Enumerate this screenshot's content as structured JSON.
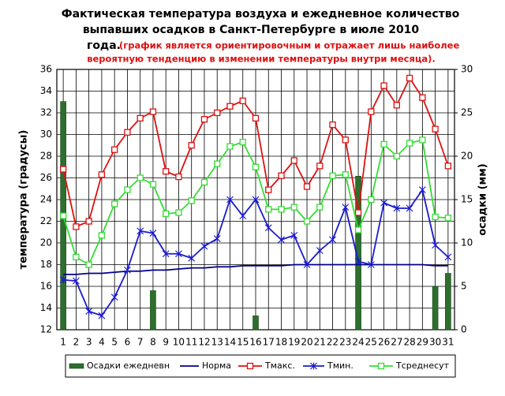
{
  "chart_data": {
    "type": "combo",
    "title_lines": [
      "Фактическая температура воздуха и ежедневное количество",
      "выпавших осадков в Санкт-Петербурге в июле 2010",
      "года."
    ],
    "subtitle_lines": [
      "(график является ориентировочным и отражает лишь наиболее",
      "вероятную тенденцию  в изменении температуры внутри месяца)."
    ],
    "y_label": "температура (градусы)",
    "y2_label": "осадки (мм)",
    "categories": [
      "1",
      "2",
      "3",
      "4",
      "5",
      "6",
      "7",
      "8",
      "9",
      "10",
      "11",
      "12",
      "13",
      "14",
      "15",
      "16",
      "17",
      "18",
      "19",
      "20",
      "21",
      "22",
      "23",
      "24",
      "25",
      "26",
      "27",
      "28",
      "29",
      "30",
      "31"
    ],
    "ylim": [
      12,
      36
    ],
    "yticks": [
      12,
      14,
      16,
      18,
      20,
      22,
      24,
      26,
      28,
      30,
      32,
      34,
      36
    ],
    "y2lim": [
      0,
      30
    ],
    "y2ticks": [
      0,
      5,
      10,
      15,
      20,
      25,
      30
    ],
    "grid": true,
    "series": [
      {
        "name": "Осадки ежедневн",
        "type": "bar",
        "axis": "y2",
        "color": "#2e6e2e",
        "values": [
          26.3,
          0,
          0,
          0,
          0,
          0,
          0,
          4.5,
          0,
          0,
          0,
          0,
          0,
          0,
          0,
          1.6,
          0,
          0,
          0,
          0,
          0,
          0,
          0,
          17.7,
          0,
          0,
          0,
          0,
          0,
          5.0,
          6.5
        ]
      },
      {
        "name": "Норма",
        "type": "line",
        "color": "#00008b",
        "marker": "none",
        "values": [
          17.1,
          17.1,
          17.2,
          17.2,
          17.3,
          17.4,
          17.4,
          17.5,
          17.5,
          17.6,
          17.7,
          17.7,
          17.8,
          17.8,
          17.9,
          17.9,
          17.9,
          17.9,
          18,
          18,
          18,
          18,
          18,
          18,
          18,
          18,
          18,
          18,
          18,
          17.9,
          17.9
        ]
      },
      {
        "name": "Тмакс.",
        "type": "line",
        "color": "#dd1111",
        "marker": "square",
        "values": [
          26.8,
          21.5,
          22.0,
          26.3,
          28.6,
          30.2,
          31.5,
          32.1,
          26.6,
          26.1,
          29.0,
          31.4,
          32.0,
          32.6,
          33.1,
          31.5,
          24.9,
          26.2,
          27.6,
          25.2,
          27.1,
          30.9,
          29.5,
          22.8,
          32.1,
          34.5,
          32.7,
          35.2,
          33.4,
          30.5,
          27.1
        ]
      },
      {
        "name": "Тмин.",
        "type": "line",
        "color": "#1a1acc",
        "marker": "star",
        "values": [
          16.6,
          16.5,
          13.7,
          13.3,
          15.0,
          17.5,
          21.1,
          20.9,
          19.0,
          19.0,
          18.6,
          19.7,
          20.4,
          24.0,
          22.5,
          24.0,
          21.4,
          20.3,
          20.7,
          18.0,
          19.3,
          20.3,
          23.3,
          18.3,
          18.0,
          23.7,
          23.2,
          23.2,
          24.9,
          19.8,
          18.7
        ]
      },
      {
        "name": "Тсреднесут",
        "type": "line",
        "color": "#33dd33",
        "marker": "square",
        "values": [
          22.5,
          18.7,
          18.0,
          20.7,
          23.6,
          24.9,
          26.0,
          25.4,
          22.7,
          22.8,
          23.9,
          25.6,
          27.3,
          28.9,
          29.3,
          27.0,
          23.1,
          23.1,
          23.3,
          22.0,
          23.3,
          26.2,
          26.3,
          21.2,
          24.0,
          29.1,
          28.0,
          29.2,
          29.5,
          22.4,
          22.3
        ]
      }
    ]
  }
}
